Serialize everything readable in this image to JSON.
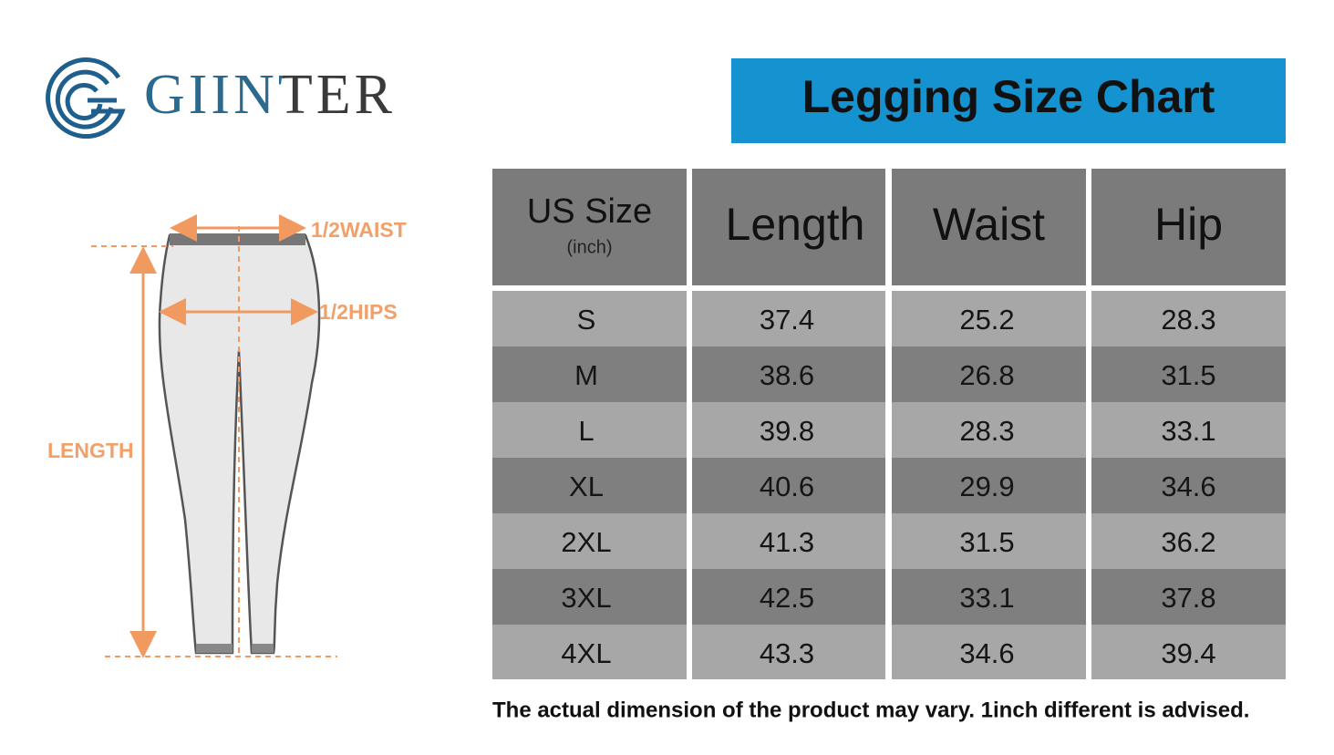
{
  "brand": "GIINTER",
  "title": "Legging Size Chart",
  "diagram": {
    "waist": "1/2WAIST",
    "hips": "1/2HIPS",
    "length": "LENGTH"
  },
  "table": {
    "header": {
      "size": "US Size",
      "unit": "(inch)",
      "columns": [
        "Length",
        "Waist",
        "Hip"
      ]
    },
    "rows": [
      [
        "S",
        "37.4",
        "25.2",
        "28.3"
      ],
      [
        "M",
        "38.6",
        "26.8",
        "31.5"
      ],
      [
        "L",
        "39.8",
        "28.3",
        "33.1"
      ],
      [
        "XL",
        "40.6",
        "29.9",
        "34.6"
      ],
      [
        "2XL",
        "41.3",
        "31.5",
        "36.2"
      ],
      [
        "3XL",
        "42.5",
        "33.1",
        "37.8"
      ],
      [
        "4XL",
        "43.3",
        "34.6",
        "39.4"
      ]
    ]
  },
  "note": "The actual dimension of the product may vary. 1inch different is advised."
}
